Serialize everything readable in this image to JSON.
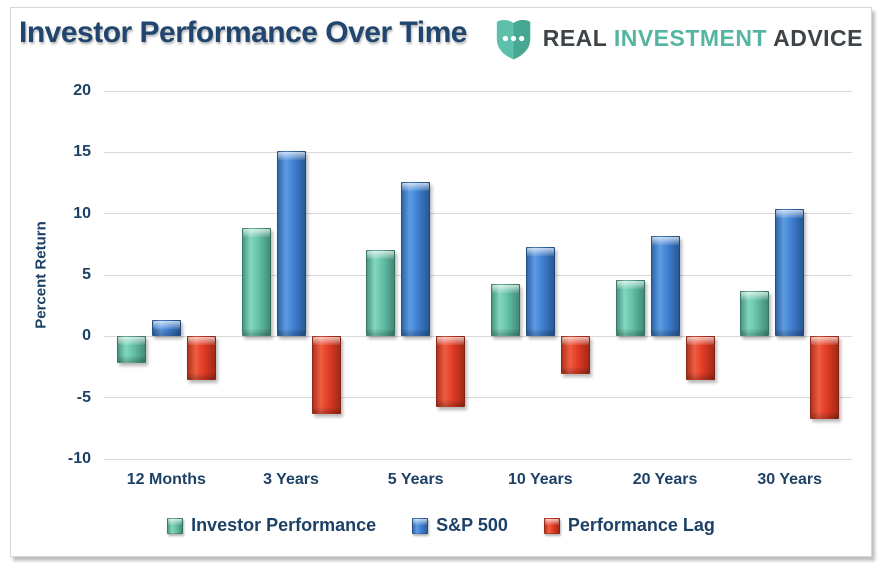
{
  "header": {
    "title": "Investor Performance Over Time",
    "logo": {
      "icon": "shield-ellipsis-icon",
      "real": "REAL",
      "investment": "INVESTMENT",
      "advice": "ADVICE"
    }
  },
  "colors": {
    "navy_text": "#1d4166",
    "teal_series": "#5fbca4",
    "blue_series": "#3d7cc9",
    "red_series": "#dd3b26",
    "logo_teal": "#55b5a1",
    "logo_dark": "#3d4347",
    "gridline": "#d9d9d9"
  },
  "chart_data": {
    "type": "bar",
    "title": "Investor Performance Over Time",
    "xlabel": "",
    "ylabel": "Percent Return",
    "ylim": [
      -10,
      20
    ],
    "yticks": [
      20,
      15,
      10,
      5,
      0,
      -5,
      -10
    ],
    "grid": true,
    "legend_position": "bottom",
    "categories": [
      "12 Months",
      "3 Years",
      "5 Years",
      "10 Years",
      "20 Years",
      "30 Years"
    ],
    "series": [
      {
        "name": "Investor Performance",
        "color": "#5fbca4",
        "values": [
          -2.2,
          8.8,
          7.0,
          4.3,
          4.6,
          3.7
        ]
      },
      {
        "name": "S&P 500",
        "color": "#3d7cc9",
        "values": [
          1.3,
          15.1,
          12.6,
          7.3,
          8.2,
          10.4
        ]
      },
      {
        "name": "Performance Lag",
        "color": "#dd3b26",
        "values": [
          -3.6,
          -6.3,
          -5.8,
          -3.1,
          -3.6,
          -6.7
        ]
      }
    ]
  }
}
